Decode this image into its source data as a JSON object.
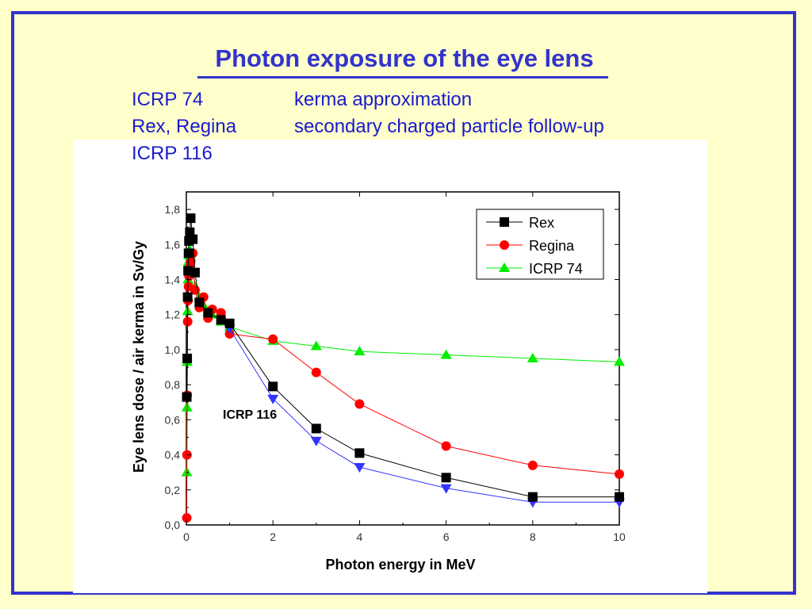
{
  "slide": {
    "title": "Photon exposure of the eye lens",
    "rows": [
      {
        "label": "ICRP 74",
        "text": "kerma  approximation"
      },
      {
        "label": "Rex, Regina",
        "text": "secondary charged particle follow-up"
      },
      {
        "label": "ICRP 116",
        "text": ""
      }
    ],
    "colors": {
      "background": "#ffffcc",
      "accent": "#3333cc",
      "text": "#1a1acc"
    }
  },
  "chart_data": {
    "type": "line",
    "title": "",
    "xlabel": "Photon energy  in MeV",
    "ylabel": "Eye lens dose / air kerma  in Sv/Gy",
    "xlim": [
      0,
      10
    ],
    "ylim": [
      0,
      1.9
    ],
    "x_ticks": [
      "0",
      "2",
      "4",
      "6",
      "8",
      "10"
    ],
    "y_ticks": [
      "0,0",
      "0,2",
      "0,4",
      "0,6",
      "0,8",
      "1,0",
      "1,2",
      "1,4",
      "1,6",
      "1,8"
    ],
    "legend_position": "top-right",
    "annotation": "ICRP 116",
    "series": [
      {
        "name": "Rex",
        "color": "#000000",
        "marker": "square",
        "points": [
          [
            0.01,
            0.73
          ],
          [
            0.02,
            0.95
          ],
          [
            0.03,
            1.3
          ],
          [
            0.04,
            1.45
          ],
          [
            0.05,
            1.55
          ],
          [
            0.06,
            1.62
          ],
          [
            0.08,
            1.67
          ],
          [
            0.1,
            1.75
          ],
          [
            0.15,
            1.63
          ],
          [
            0.2,
            1.44
          ],
          [
            0.3,
            1.27
          ],
          [
            0.5,
            1.21
          ],
          [
            0.8,
            1.17
          ],
          [
            1.0,
            1.15
          ],
          [
            2.0,
            0.79
          ],
          [
            3.0,
            0.55
          ],
          [
            4.0,
            0.41
          ],
          [
            6.0,
            0.27
          ],
          [
            8.0,
            0.16
          ],
          [
            10.0,
            0.16
          ]
        ]
      },
      {
        "name": "Regina",
        "color": "#ff0000",
        "marker": "circle",
        "points": [
          [
            0.01,
            0.04
          ],
          [
            0.015,
            0.4
          ],
          [
            0.02,
            0.74
          ],
          [
            0.03,
            1.16
          ],
          [
            0.04,
            1.28
          ],
          [
            0.05,
            1.36
          ],
          [
            0.06,
            1.42
          ],
          [
            0.08,
            1.47
          ],
          [
            0.1,
            1.5
          ],
          [
            0.15,
            1.55
          ],
          [
            0.2,
            1.34
          ],
          [
            0.3,
            1.24
          ],
          [
            0.4,
            1.3
          ],
          [
            0.5,
            1.18
          ],
          [
            0.6,
            1.23
          ],
          [
            0.8,
            1.21
          ],
          [
            1.0,
            1.09
          ],
          [
            2.0,
            1.06
          ],
          [
            3.0,
            0.87
          ],
          [
            4.0,
            0.69
          ],
          [
            6.0,
            0.45
          ],
          [
            8.0,
            0.34
          ],
          [
            10.0,
            0.29
          ]
        ]
      },
      {
        "name": "ICRP 74",
        "color": "#00ee00",
        "marker": "triangle-up",
        "points": [
          [
            0.01,
            0.3
          ],
          [
            0.015,
            0.67
          ],
          [
            0.02,
            0.93
          ],
          [
            0.03,
            1.22
          ],
          [
            0.04,
            1.4
          ],
          [
            0.05,
            1.5
          ],
          [
            0.06,
            1.54
          ],
          [
            0.08,
            1.57
          ],
          [
            0.1,
            1.53
          ],
          [
            0.15,
            1.44
          ],
          [
            0.2,
            1.36
          ],
          [
            0.3,
            1.3
          ],
          [
            0.4,
            1.25
          ],
          [
            0.5,
            1.22
          ],
          [
            0.6,
            1.2
          ],
          [
            0.8,
            1.16
          ],
          [
            1.0,
            1.13
          ],
          [
            2.0,
            1.05
          ],
          [
            3.0,
            1.02
          ],
          [
            4.0,
            0.99
          ],
          [
            6.0,
            0.97
          ],
          [
            8.0,
            0.95
          ],
          [
            10.0,
            0.93
          ]
        ]
      },
      {
        "name": "ICRP 116",
        "color": "#3333ff",
        "marker": "triangle-down",
        "points": [
          [
            1.0,
            1.12
          ],
          [
            2.0,
            0.72
          ],
          [
            3.0,
            0.48
          ],
          [
            4.0,
            0.33
          ],
          [
            6.0,
            0.21
          ],
          [
            8.0,
            0.13
          ],
          [
            10.0,
            0.13
          ]
        ]
      }
    ]
  }
}
